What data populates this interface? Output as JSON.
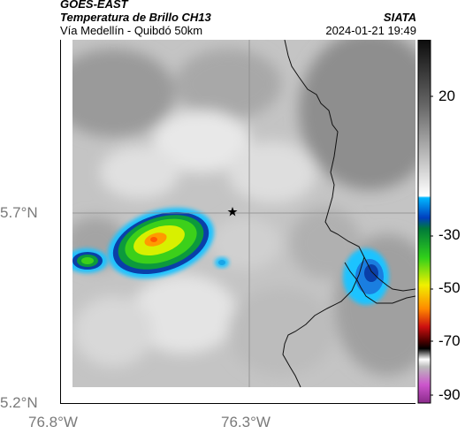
{
  "header": {
    "satellite": "GOES-EAST",
    "product": "Temperatura de Brillo CH13",
    "region": "Vía Medellín - Quibdó 50km",
    "brand": "SIATA",
    "datetime": "2024-01-21 19:49"
  },
  "axes": {
    "lat_labels": [
      "5.7°N",
      "5.2°N"
    ],
    "lon_labels": [
      "76.8°W",
      "76.3°W"
    ]
  },
  "colorbar": {
    "ticks": [
      "20",
      "-30",
      "-50",
      "-70",
      "-90"
    ],
    "colors": [
      "#111111",
      "#777777",
      "#f2f2f2",
      "#00b8ff",
      "#003fbf",
      "#009a3c",
      "#34d41a",
      "#f0f000",
      "#ff8a00",
      "#cc1010",
      "#5a0000",
      "#000000",
      "#bbbbbb",
      "#cc44cc"
    ]
  },
  "map": {
    "marker": "star",
    "marker_color": "#000000",
    "gridline_color": "#8a8a8a",
    "border_color": "#000000"
  }
}
